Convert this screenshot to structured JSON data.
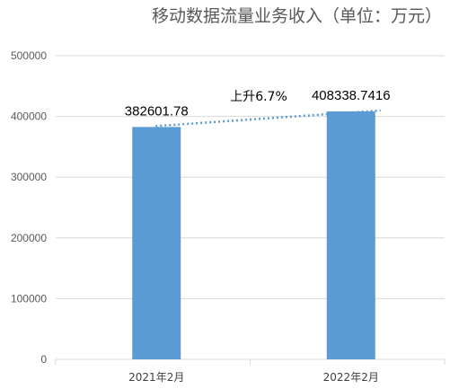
{
  "chart_data": {
    "type": "bar",
    "title": "移动数据流量业务收入（单位：万元）",
    "xlabel": "",
    "ylabel": "",
    "categories": [
      "2021年2月",
      "2022年2月"
    ],
    "values": [
      382601.78,
      408338.7416
    ],
    "data_labels": [
      "382601.78",
      "408338.7416"
    ],
    "ylim": [
      0,
      500000
    ],
    "yticks": [
      "0",
      "100000",
      "200000",
      "300000",
      "400000",
      "500000"
    ],
    "grid": true,
    "legend": "none",
    "bar_color": "#5b9bd5",
    "trendline": {
      "style": "dotted",
      "color": "#5b9bd5",
      "from_value": 382601.78,
      "to_value": 408338.7416
    },
    "annotation": "上升6.7%"
  }
}
